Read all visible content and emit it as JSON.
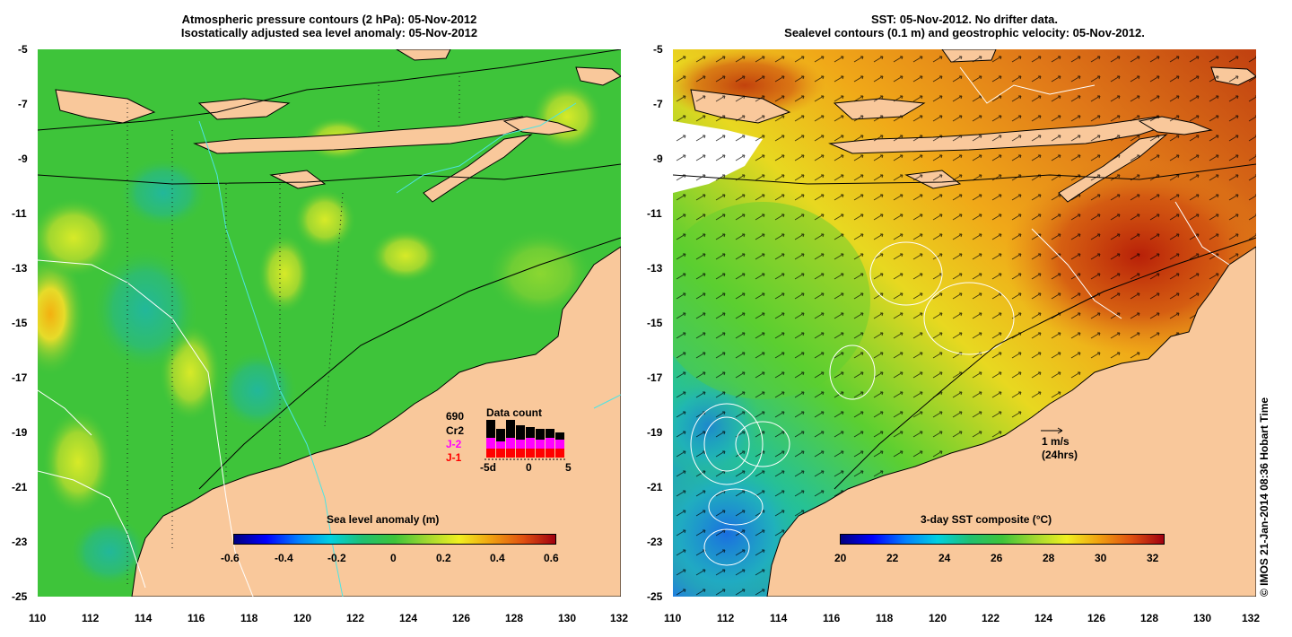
{
  "left_panel": {
    "title_line1": "Atmospheric pressure contours (2 hPa): 05-Nov-2012",
    "title_line2": "Isostatically adjusted sea level anomaly: 05-Nov-2012",
    "colorbar_title": "Sea level anomaly (m)",
    "colorbar_ticks": [
      "-0.6",
      "-0.4",
      "-0.2",
      "0",
      "0.2",
      "0.4",
      "0.6"
    ],
    "data_count": {
      "title": "Data count",
      "count_value": "690",
      "satellites": [
        {
          "name": "Cr2",
          "color": "#000000"
        },
        {
          "name": "J-2",
          "color": "#ff00ff"
        },
        {
          "name": "J-1",
          "color": "#ff0000"
        }
      ],
      "axis_labels": [
        "-5d",
        "0",
        "5"
      ]
    }
  },
  "right_panel": {
    "title_line1": "SST: 05-Nov-2012. No drifter data.",
    "title_line2": "Sealevel contours (0.1 m) and geostrophic velocity: 05-Nov-2012.",
    "colorbar_title": "3-day SST composite (°C)",
    "colorbar_ticks": [
      "20",
      "22",
      "24",
      "26",
      "28",
      "30",
      "32"
    ],
    "velocity_scale": {
      "line1": "1 m/s",
      "line2": "(24hrs)"
    }
  },
  "axes": {
    "lat_ticks": [
      "-5",
      "-7",
      "-9",
      "-11",
      "-13",
      "-15",
      "-17",
      "-19",
      "-21",
      "-23",
      "-25"
    ],
    "lon_ticks": [
      "110",
      "112",
      "114",
      "116",
      "118",
      "120",
      "122",
      "124",
      "126",
      "128",
      "130",
      "132"
    ]
  },
  "credit": "© IMOS 21-Jan-2014 08:36 Hobart Time",
  "colors": {
    "land": "#f9c89b",
    "sla_base": "#3ec43a",
    "sst_warm": "#f0a020",
    "sst_hot": "#c03010"
  }
}
